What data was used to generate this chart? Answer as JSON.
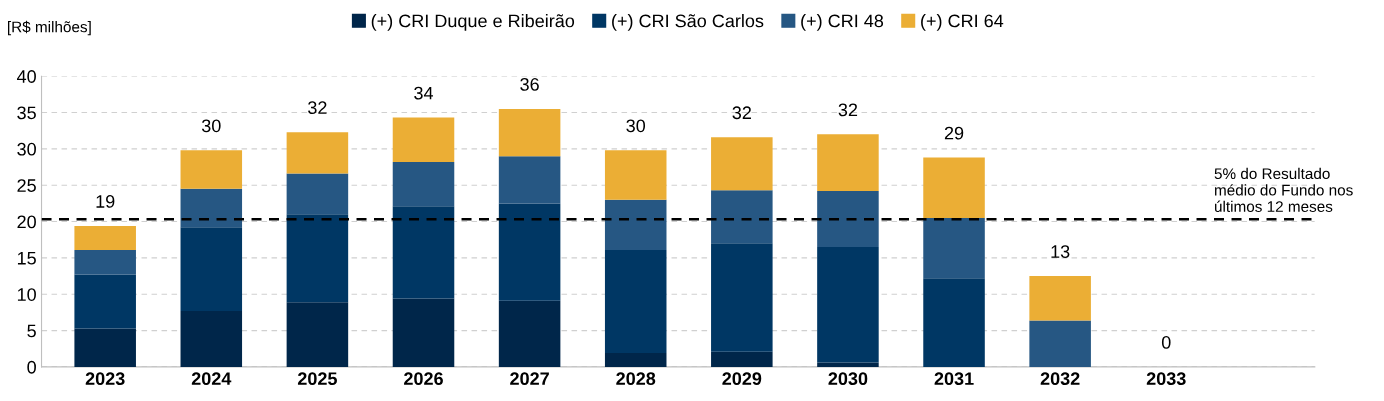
{
  "chart_data": {
    "type": "bar",
    "stacked": true,
    "ylabel": "[R$ milhões]",
    "categories": [
      "2023",
      "2024",
      "2025",
      "2026",
      "2027",
      "2028",
      "2029",
      "2030",
      "2031",
      "2032",
      "2033"
    ],
    "series": [
      {
        "name": "(+) CRI Duque e Ribeirão",
        "color": "#00264a",
        "values": [
          5.3,
          7.7,
          8.9,
          9.4,
          9.1,
          1.9,
          2.1,
          0.6,
          0,
          0,
          0
        ]
      },
      {
        "name": "(+) CRI São Carlos",
        "color": "#003764",
        "values": [
          7.4,
          11.5,
          12.1,
          12.7,
          13.4,
          14.2,
          14.9,
          15.9,
          12.2,
          0,
          0
        ]
      },
      {
        "name": "(+) CRI 48",
        "color": "#265783",
        "values": [
          3.4,
          5.3,
          5.6,
          6.1,
          6.5,
          6.9,
          7.3,
          7.7,
          8.3,
          6.4,
          0
        ]
      },
      {
        "name": "(+) CRI 64",
        "color": "#ebae35",
        "values": [
          3.3,
          5.3,
          5.7,
          6.1,
          6.5,
          6.8,
          7.3,
          7.8,
          8.3,
          6.1,
          0
        ]
      }
    ],
    "totals": [
      "19",
      "30",
      "32",
      "34",
      "36",
      "30",
      "32",
      "32",
      "29",
      "13",
      "0"
    ],
    "ylim": [
      0,
      40
    ],
    "yticks": [
      0,
      5,
      10,
      15,
      20,
      25,
      30,
      35,
      40
    ],
    "grid": "y",
    "legend": "top",
    "ref_lines": [
      {
        "axis": "y",
        "value": 20.3,
        "label": "5% do Resultado\nmédio do Fundo nos\núltimos 12 meses",
        "color": "#000000",
        "line_style": "dashed"
      }
    ]
  }
}
